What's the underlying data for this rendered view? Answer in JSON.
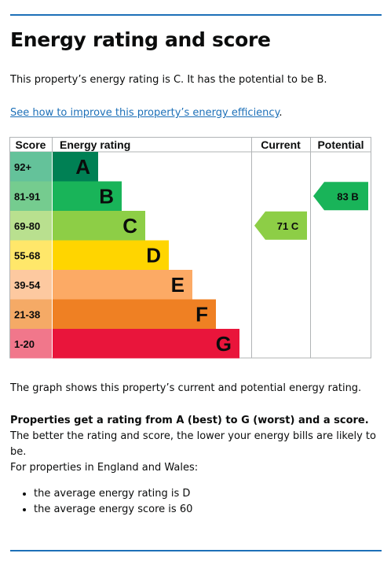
{
  "page": {
    "title": "Energy rating and score",
    "intro": "This property’s energy rating is C. It has the potential to be B.",
    "improve_link": "See how to improve this property’s energy efficiency",
    "improve_link_suffix": ".",
    "graph_note": "The graph shows this property’s current and potential energy rating.",
    "rating_explainer_bold": "Properties get a rating from A (best) to G (worst) and a score.",
    "rating_explainer_rest": " The better the rating and score, the lower your energy bills are likely to be.",
    "region_note": "For properties in England and Wales:",
    "bullets": [
      "the average energy rating is D",
      "the average energy score is 60"
    ]
  },
  "chart_data": {
    "type": "bar",
    "headers": {
      "score": "Score",
      "rating": "Energy rating",
      "current": "Current",
      "potential": "Potential"
    },
    "bands": [
      {
        "letter": "A",
        "score": "92+",
        "min": 92,
        "color": "#008054",
        "score_bg": "#64c29a"
      },
      {
        "letter": "B",
        "score": "81-91",
        "min": 81,
        "color": "#19b459",
        "score_bg": "#75cc8f"
      },
      {
        "letter": "C",
        "score": "69-80",
        "min": 69,
        "color": "#8dce46",
        "score_bg": "#b9e08f"
      },
      {
        "letter": "D",
        "score": "55-68",
        "min": 55,
        "color": "#ffd500",
        "score_bg": "#ffe76a"
      },
      {
        "letter": "E",
        "score": "39-54",
        "min": 39,
        "color": "#fcaa65",
        "score_bg": "#fdc9a0"
      },
      {
        "letter": "F",
        "score": "21-38",
        "min": 21,
        "color": "#ef8023",
        "score_bg": "#f5aa66"
      },
      {
        "letter": "G",
        "score": "1-20",
        "min": 1,
        "color": "#e9153b",
        "score_bg": "#f1778b"
      }
    ],
    "current": {
      "score": 71,
      "band": "C",
      "label": "71  C"
    },
    "potential": {
      "score": 83,
      "band": "B",
      "label": "83  B"
    }
  }
}
